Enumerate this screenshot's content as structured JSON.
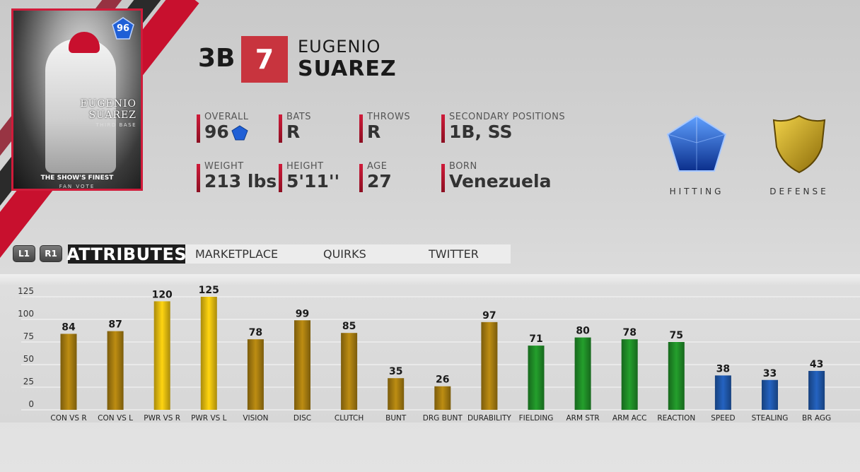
{
  "card": {
    "rating": "96",
    "name_first": "EUGENIO",
    "name_last": "SUAREZ",
    "subtitle": "THIRD BASE",
    "series": "THE SHOW'S FINEST",
    "series_sub": "FAN VOTE",
    "team_color": "#c8102e"
  },
  "player": {
    "position": "3B",
    "number": "7",
    "first_name": "EUGENIO",
    "last_name": "SUAREZ"
  },
  "info": {
    "overall": {
      "label": "OVERALL",
      "value": "96",
      "icon": "diamond-icon"
    },
    "bats": {
      "label": "BATS",
      "value": "R"
    },
    "throws": {
      "label": "THROWS",
      "value": "R"
    },
    "secondary": {
      "label": "SECONDARY POSITIONS",
      "value": "1B, SS"
    },
    "weight": {
      "label": "WEIGHT",
      "value": "213 lbs"
    },
    "height": {
      "label": "HEIGHT",
      "value": "5'11''"
    },
    "age": {
      "label": "AGE",
      "value": "27"
    },
    "born": {
      "label": "BORN",
      "value": "Venezuela"
    }
  },
  "emblems": {
    "hitting": {
      "label": "HITTING",
      "icon": "diamond-gem-icon",
      "color": "#1f5fd6"
    },
    "defense": {
      "label": "DEFENSE",
      "icon": "gold-shield-icon",
      "color": "#c9a51c"
    }
  },
  "tabs": {
    "l1": "L1",
    "r1": "R1",
    "items": [
      "ATTRIBUTES",
      "MARKETPLACE",
      "QUIRKS",
      "TWITTER"
    ],
    "active": "ATTRIBUTES"
  },
  "chart_data": {
    "type": "bar",
    "title": "",
    "xlabel": "",
    "ylabel": "",
    "ylim": [
      0,
      125
    ],
    "yticks": [
      0,
      25,
      50,
      75,
      100,
      125
    ],
    "grid": true,
    "categories": [
      "CON VS R",
      "CON VS L",
      "PWR VS R",
      "PWR VS L",
      "VISION",
      "DISC",
      "CLUTCH",
      "BUNT",
      "DRG BUNT",
      "DURABILITY",
      "FIELDING",
      "ARM STR",
      "ARM ACC",
      "REACTION",
      "SPEED",
      "STEALING",
      "BR AGG"
    ],
    "values": [
      84,
      87,
      120,
      125,
      78,
      99,
      85,
      35,
      26,
      97,
      71,
      80,
      78,
      75,
      38,
      33,
      43
    ],
    "groups": [
      "hitting",
      "hitting",
      "power",
      "power",
      "hitting",
      "hitting",
      "hitting",
      "hitting",
      "hitting",
      "hitting",
      "fielding",
      "fielding",
      "fielding",
      "fielding",
      "running",
      "running",
      "running"
    ],
    "colors": {
      "hitting": "#a47b10",
      "power": "#e3b90f",
      "fielding": "#1f8a26",
      "running": "#1f56a8"
    }
  }
}
